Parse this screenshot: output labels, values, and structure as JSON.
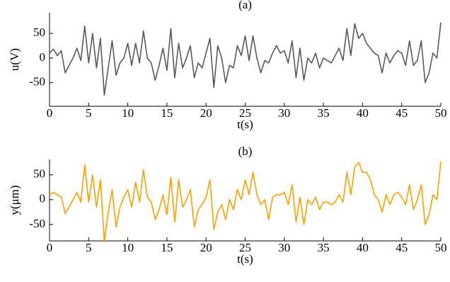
{
  "chart_data": [
    {
      "type": "line",
      "title": "(a)",
      "x_label": "t(s)",
      "y_label": "u(V)",
      "x": [
        0,
        0.5,
        1,
        1.5,
        2,
        2.5,
        3,
        3.5,
        4,
        4.5,
        5,
        5.5,
        6,
        6.5,
        7,
        7.5,
        8,
        8.5,
        9,
        9.5,
        10,
        10.5,
        11,
        11.5,
        12,
        12.5,
        13,
        13.5,
        14,
        14.5,
        15,
        15.5,
        16,
        16.5,
        17,
        17.5,
        18,
        18.5,
        19,
        19.5,
        20,
        20.5,
        21,
        21.5,
        22,
        22.5,
        23,
        23.5,
        24,
        24.5,
        25,
        25.5,
        26,
        26.5,
        27,
        27.5,
        28,
        28.5,
        29,
        29.5,
        30,
        30.5,
        31,
        31.5,
        32,
        32.5,
        33,
        33.5,
        34,
        34.5,
        35,
        35.5,
        36,
        36.5,
        37,
        37.5,
        38,
        38.5,
        39,
        39.5,
        40,
        40.5,
        41,
        41.5,
        42,
        42.5,
        43,
        43.5,
        44,
        44.5,
        45,
        45.5,
        46,
        46.5,
        47,
        47.5,
        48,
        48.5,
        49,
        49.5,
        50
      ],
      "series": [
        {
          "name": "u",
          "color": "#595959",
          "values": [
            10,
            18,
            5,
            15,
            -30,
            -15,
            0,
            20,
            -5,
            65,
            -10,
            50,
            -20,
            40,
            -75,
            -20,
            35,
            -35,
            -10,
            0,
            30,
            -15,
            30,
            -10,
            55,
            0,
            -10,
            -45,
            -15,
            20,
            -25,
            60,
            -40,
            30,
            -20,
            0,
            25,
            -40,
            -10,
            -20,
            10,
            40,
            -60,
            25,
            0,
            -50,
            -15,
            -20,
            25,
            5,
            45,
            -5,
            45,
            0,
            -30,
            -5,
            -10,
            10,
            25,
            10,
            15,
            -10,
            35,
            -40,
            20,
            -45,
            0,
            -10,
            10,
            -20,
            0,
            -5,
            -10,
            5,
            20,
            -5,
            60,
            5,
            70,
            40,
            50,
            30,
            20,
            10,
            5,
            -30,
            10,
            -10,
            5,
            15,
            10,
            -15,
            35,
            -15,
            -5,
            35,
            -50,
            -30,
            10,
            0,
            72
          ]
        }
      ],
      "xlim": [
        0,
        50
      ],
      "ylim": [
        -98,
        92
      ],
      "xticks": [
        0,
        5,
        10,
        15,
        20,
        25,
        30,
        35,
        40,
        45,
        50
      ],
      "yticks": [
        -50,
        0,
        50
      ],
      "grid": false
    },
    {
      "type": "line",
      "title": "(b)",
      "x_label": "t(s)",
      "y_label": "y(μm)",
      "x": [
        0,
        0.5,
        1,
        1.5,
        2,
        2.5,
        3,
        3.5,
        4,
        4.5,
        5,
        5.5,
        6,
        6.5,
        7,
        7.5,
        8,
        8.5,
        9,
        9.5,
        10,
        10.5,
        11,
        11.5,
        12,
        12.5,
        13,
        13.5,
        14,
        14.5,
        15,
        15.5,
        16,
        16.5,
        17,
        17.5,
        18,
        18.5,
        19,
        19.5,
        20,
        20.5,
        21,
        21.5,
        22,
        22.5,
        23,
        23.5,
        24,
        24.5,
        25,
        25.5,
        26,
        26.5,
        27,
        27.5,
        28,
        28.5,
        29,
        29.5,
        30,
        30.5,
        31,
        31.5,
        32,
        32.5,
        33,
        33.5,
        34,
        34.5,
        35,
        35.5,
        36,
        36.5,
        37,
        37.5,
        38,
        38.5,
        39,
        39.5,
        40,
        40.5,
        41,
        41.5,
        42,
        42.5,
        43,
        43.5,
        44,
        44.5,
        45,
        45.5,
        46,
        46.5,
        47,
        47.5,
        48,
        48.5,
        49,
        49.5,
        50
      ],
      "series": [
        {
          "name": "y",
          "color": "#f5a300",
          "values": [
            10,
            15,
            10,
            5,
            -28,
            -15,
            0,
            15,
            -5,
            70,
            -5,
            50,
            -15,
            40,
            -85,
            -25,
            20,
            -55,
            -15,
            5,
            20,
            -15,
            35,
            -5,
            60,
            5,
            -5,
            -40,
            -20,
            10,
            -30,
            45,
            -45,
            40,
            -15,
            0,
            20,
            -55,
            -20,
            -10,
            5,
            40,
            -60,
            -25,
            -10,
            -40,
            0,
            -20,
            20,
            0,
            40,
            10,
            55,
            10,
            -10,
            0,
            -40,
            5,
            10,
            10,
            15,
            -10,
            30,
            -45,
            5,
            -50,
            0,
            -10,
            5,
            -20,
            -5,
            -5,
            -10,
            -5,
            10,
            -5,
            55,
            10,
            65,
            75,
            55,
            55,
            40,
            10,
            0,
            -25,
            10,
            -10,
            10,
            15,
            5,
            -10,
            30,
            -20,
            0,
            30,
            -50,
            -30,
            10,
            0,
            77
          ]
        }
      ],
      "xlim": [
        0,
        50
      ],
      "ylim": [
        -83,
        81
      ],
      "xticks": [
        0,
        5,
        10,
        15,
        20,
        25,
        30,
        35,
        40,
        45,
        50
      ],
      "yticks": [
        -50,
        0,
        50
      ],
      "grid": false
    }
  ]
}
